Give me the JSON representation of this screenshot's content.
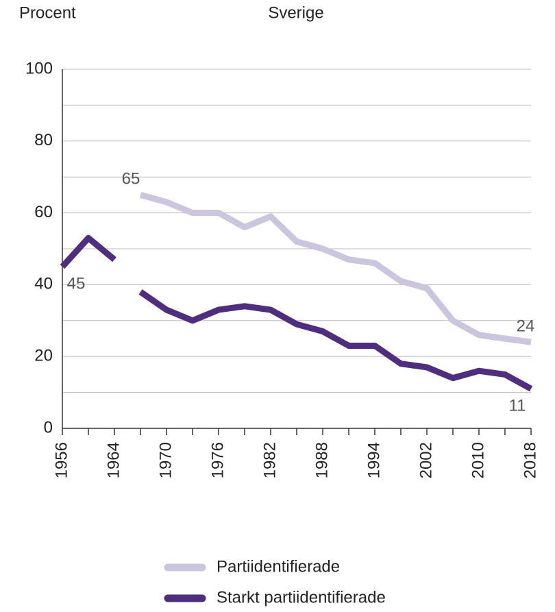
{
  "chart_data": {
    "type": "line",
    "title": "Sverige",
    "y_label": "Procent",
    "categories": [
      "1956",
      null,
      "1964",
      null,
      "1970",
      null,
      "1976",
      null,
      "1982",
      null,
      "1988",
      null,
      "1994",
      null,
      "2002",
      null,
      "2010",
      null,
      "2018"
    ],
    "series": [
      {
        "name": "Partiidentifierade",
        "color": "#cbc5dd",
        "values": [
          null,
          null,
          null,
          65,
          63,
          60,
          60,
          56,
          59,
          52,
          50,
          47,
          46,
          41,
          39,
          30,
          26,
          25,
          24
        ],
        "labeled_points": [
          3,
          18
        ]
      },
      {
        "name": "Starkt partiidentifierade",
        "color": "#4f2d7f",
        "values": [
          45,
          53,
          47,
          38,
          33,
          30,
          33,
          34,
          33,
          29,
          27,
          23,
          23,
          18,
          17,
          14,
          16,
          15,
          11
        ],
        "labeled_points": [
          0,
          18
        ],
        "gap_after": [
          2
        ]
      }
    ],
    "ylim": [
      0,
      100
    ],
    "yticks": [
      0,
      20,
      40,
      60,
      80,
      100
    ],
    "ygrid": [
      0,
      10,
      20,
      30,
      40,
      50,
      60,
      70,
      80,
      90,
      100
    ],
    "legend": "bottom"
  }
}
